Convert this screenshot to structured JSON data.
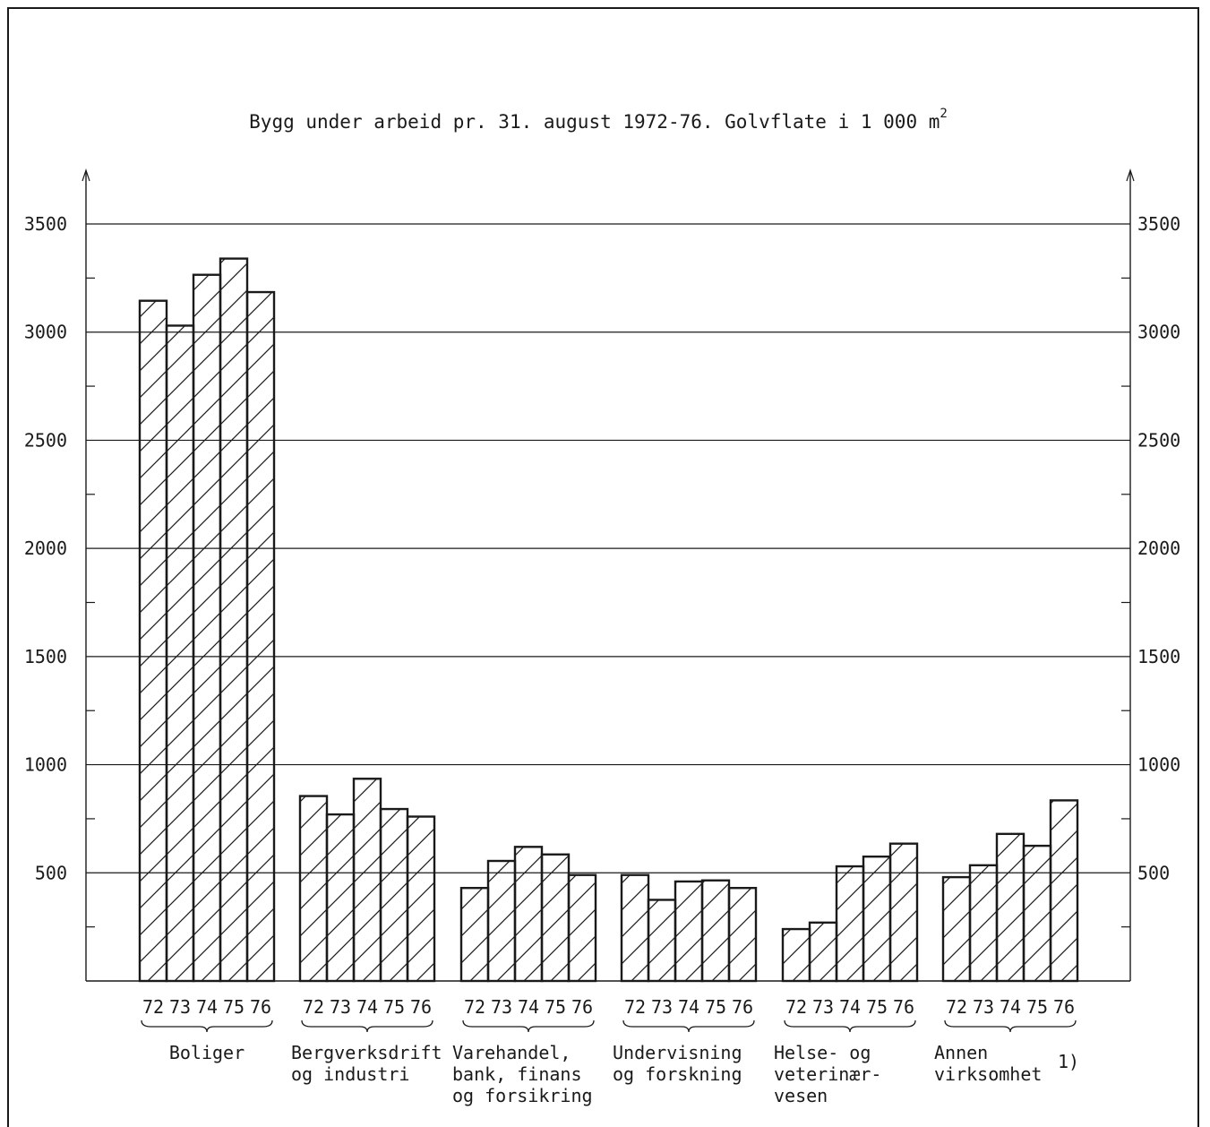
{
  "chart_data": {
    "type": "bar",
    "title": "Bygg under arbeid pr. 31. august 1972-76. Golvflate i 1 000 m",
    "title_superscript": "2",
    "ylim": [
      0,
      3600
    ],
    "yticks": [
      500,
      1000,
      1500,
      2000,
      2500,
      3000,
      3500
    ],
    "ytick_labels": [
      "500",
      "1000",
      "1500",
      "2000",
      "2500",
      "3000",
      "3500"
    ],
    "grid": true,
    "x": [
      "72",
      "73",
      "74",
      "75",
      "76"
    ],
    "categories": [
      {
        "lines": [
          "Boliger"
        ],
        "footnote": "",
        "values": [
          3145,
          3030,
          3265,
          3340,
          3185
        ]
      },
      {
        "lines": [
          "Bergverksdrift",
          "og industri"
        ],
        "footnote": "",
        "values": [
          855,
          770,
          935,
          795,
          760
        ]
      },
      {
        "lines": [
          "Varehandel,",
          "bank, finans",
          "og forsikring"
        ],
        "footnote": "",
        "values": [
          430,
          555,
          620,
          585,
          490
        ]
      },
      {
        "lines": [
          "Undervisning",
          "og forskning"
        ],
        "footnote": "",
        "values": [
          490,
          375,
          460,
          465,
          430
        ]
      },
      {
        "lines": [
          "Helse- og",
          "veterinær-",
          "vesen"
        ],
        "footnote": "",
        "values": [
          240,
          270,
          530,
          575,
          635
        ]
      },
      {
        "lines": [
          "Annen",
          "virksomhet"
        ],
        "footnote": "1)",
        "values": [
          480,
          535,
          680,
          625,
          835
        ]
      }
    ],
    "pattern": "diagonal-hatch"
  }
}
